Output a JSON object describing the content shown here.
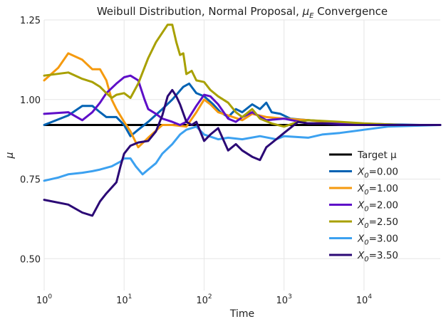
{
  "chart_data": {
    "type": "line",
    "title": "Weibull Distribution, Normal Proposal, μ_E Convergence",
    "title_main": "Weibull Distribution, Normal Proposal, ",
    "title_sym": "μ",
    "title_sub": "E",
    "title_end": " Convergence",
    "xlabel": "Time",
    "ylabel": "μ",
    "x_scale": "log",
    "xlim": [
      1,
      90000
    ],
    "ylim": [
      0.4,
      1.25
    ],
    "y_ticks": [
      {
        "value": 0.5,
        "label": "0.50"
      },
      {
        "value": 0.75,
        "label": "0.75"
      },
      {
        "value": 1.0,
        "label": "1.00"
      },
      {
        "value": 1.25,
        "label": "1.25"
      }
    ],
    "x_ticks": [
      {
        "value": 1,
        "base": "10",
        "exp": "0"
      },
      {
        "value": 10,
        "base": "10",
        "exp": "1"
      },
      {
        "value": 100,
        "base": "10",
        "exp": "2"
      },
      {
        "value": 1000,
        "base": "10",
        "exp": "3"
      },
      {
        "value": 10000,
        "base": "10",
        "exp": "4"
      }
    ],
    "grid": true,
    "legend_position": "center-right",
    "target": {
      "name": "Target μ",
      "value": 0.92,
      "color": "#000000"
    },
    "series": [
      {
        "name": "X_0=0.00",
        "legend_pre": "X",
        "legend_sub": "0",
        "legend_post": "=0.00",
        "color": "#0062b3",
        "points": [
          [
            1,
            0.92
          ],
          [
            2,
            0.95
          ],
          [
            3,
            0.98
          ],
          [
            4,
            0.98
          ],
          [
            5,
            0.96
          ],
          [
            6,
            0.945
          ],
          [
            8,
            0.945
          ],
          [
            10,
            0.92
          ],
          [
            12,
            0.885
          ],
          [
            15,
            0.905
          ],
          [
            20,
            0.93
          ],
          [
            30,
            0.97
          ],
          [
            40,
            1.0
          ],
          [
            55,
            1.04
          ],
          [
            65,
            1.05
          ],
          [
            80,
            1.02
          ],
          [
            100,
            1.01
          ],
          [
            130,
            0.985
          ],
          [
            160,
            0.96
          ],
          [
            200,
            0.945
          ],
          [
            250,
            0.97
          ],
          [
            300,
            0.96
          ],
          [
            400,
            0.985
          ],
          [
            500,
            0.97
          ],
          [
            600,
            0.99
          ],
          [
            700,
            0.96
          ],
          [
            900,
            0.955
          ],
          [
            1200,
            0.94
          ],
          [
            2000,
            0.935
          ],
          [
            4000,
            0.93
          ],
          [
            8000,
            0.925
          ],
          [
            20000,
            0.922
          ],
          [
            50000,
            0.92
          ],
          [
            90000,
            0.92
          ]
        ]
      },
      {
        "name": "X_0=1.00",
        "legend_pre": "X",
        "legend_sub": "0",
        "legend_post": "=1.00",
        "color": "#f59a0f",
        "points": [
          [
            1,
            1.06
          ],
          [
            1.5,
            1.1
          ],
          [
            2,
            1.145
          ],
          [
            3,
            1.125
          ],
          [
            4,
            1.095
          ],
          [
            5,
            1.095
          ],
          [
            6,
            1.06
          ],
          [
            7,
            1.0
          ],
          [
            8,
            0.97
          ],
          [
            10,
            0.93
          ],
          [
            12,
            0.9
          ],
          [
            15,
            0.85
          ],
          [
            20,
            0.88
          ],
          [
            30,
            0.92
          ],
          [
            40,
            0.92
          ],
          [
            60,
            0.915
          ],
          [
            80,
            0.96
          ],
          [
            100,
            1.0
          ],
          [
            120,
            0.985
          ],
          [
            150,
            0.96
          ],
          [
            200,
            0.95
          ],
          [
            300,
            0.935
          ],
          [
            400,
            0.955
          ],
          [
            600,
            0.945
          ],
          [
            1000,
            0.94
          ],
          [
            2000,
            0.935
          ],
          [
            5000,
            0.925
          ],
          [
            10000,
            0.92
          ],
          [
            30000,
            0.92
          ],
          [
            90000,
            0.92
          ]
        ]
      },
      {
        "name": "X_0=2.00",
        "legend_pre": "X",
        "legend_sub": "0",
        "legend_post": "=2.00",
        "color": "#5e0fc8",
        "points": [
          [
            1,
            0.955
          ],
          [
            2,
            0.96
          ],
          [
            3,
            0.935
          ],
          [
            4,
            0.96
          ],
          [
            5,
            0.99
          ],
          [
            6,
            1.02
          ],
          [
            8,
            1.05
          ],
          [
            10,
            1.07
          ],
          [
            12,
            1.075
          ],
          [
            15,
            1.06
          ],
          [
            18,
            1.0
          ],
          [
            20,
            0.97
          ],
          [
            25,
            0.955
          ],
          [
            30,
            0.94
          ],
          [
            40,
            0.93
          ],
          [
            50,
            0.92
          ],
          [
            60,
            0.93
          ],
          [
            80,
            0.98
          ],
          [
            100,
            1.015
          ],
          [
            120,
            1.01
          ],
          [
            150,
            0.985
          ],
          [
            200,
            0.94
          ],
          [
            250,
            0.93
          ],
          [
            300,
            0.945
          ],
          [
            400,
            0.96
          ],
          [
            600,
            0.935
          ],
          [
            1000,
            0.94
          ],
          [
            2000,
            0.925
          ],
          [
            5000,
            0.925
          ],
          [
            10000,
            0.92
          ],
          [
            90000,
            0.92
          ]
        ]
      },
      {
        "name": "X_0=2.50",
        "legend_pre": "X",
        "legend_sub": "0",
        "legend_post": "=2.50",
        "color": "#a8a000",
        "points": [
          [
            1,
            1.075
          ],
          [
            2,
            1.085
          ],
          [
            3,
            1.065
          ],
          [
            4,
            1.055
          ],
          [
            5,
            1.04
          ],
          [
            6,
            1.02
          ],
          [
            7,
            1.005
          ],
          [
            8,
            1.015
          ],
          [
            10,
            1.02
          ],
          [
            12,
            1.005
          ],
          [
            15,
            1.05
          ],
          [
            20,
            1.13
          ],
          [
            25,
            1.18
          ],
          [
            30,
            1.21
          ],
          [
            35,
            1.235
          ],
          [
            40,
            1.235
          ],
          [
            45,
            1.18
          ],
          [
            50,
            1.14
          ],
          [
            55,
            1.145
          ],
          [
            60,
            1.08
          ],
          [
            70,
            1.09
          ],
          [
            80,
            1.06
          ],
          [
            100,
            1.055
          ],
          [
            120,
            1.03
          ],
          [
            150,
            1.01
          ],
          [
            200,
            0.99
          ],
          [
            250,
            0.96
          ],
          [
            300,
            0.945
          ],
          [
            400,
            0.97
          ],
          [
            500,
            0.94
          ],
          [
            700,
            0.925
          ],
          [
            1000,
            0.915
          ],
          [
            1500,
            0.93
          ],
          [
            2000,
            0.935
          ],
          [
            5000,
            0.93
          ],
          [
            10000,
            0.925
          ],
          [
            30000,
            0.92
          ],
          [
            90000,
            0.92
          ]
        ]
      },
      {
        "name": "X_0=3.00",
        "legend_pre": "X",
        "legend_sub": "0",
        "legend_post": "=3.00",
        "color": "#3ca1f0",
        "points": [
          [
            1,
            0.745
          ],
          [
            1.5,
            0.755
          ],
          [
            2,
            0.765
          ],
          [
            3,
            0.77
          ],
          [
            4,
            0.775
          ],
          [
            5,
            0.78
          ],
          [
            7,
            0.79
          ],
          [
            9,
            0.805
          ],
          [
            10,
            0.815
          ],
          [
            12,
            0.815
          ],
          [
            14,
            0.79
          ],
          [
            17,
            0.765
          ],
          [
            20,
            0.78
          ],
          [
            25,
            0.8
          ],
          [
            30,
            0.83
          ],
          [
            40,
            0.86
          ],
          [
            50,
            0.89
          ],
          [
            60,
            0.905
          ],
          [
            80,
            0.915
          ],
          [
            100,
            0.89
          ],
          [
            150,
            0.875
          ],
          [
            200,
            0.88
          ],
          [
            300,
            0.875
          ],
          [
            500,
            0.885
          ],
          [
            800,
            0.875
          ],
          [
            1000,
            0.885
          ],
          [
            2000,
            0.88
          ],
          [
            3000,
            0.89
          ],
          [
            5000,
            0.895
          ],
          [
            10000,
            0.905
          ],
          [
            20000,
            0.915
          ],
          [
            50000,
            0.918
          ],
          [
            90000,
            0.92
          ]
        ]
      },
      {
        "name": "X_0=3.50",
        "legend_pre": "X",
        "legend_sub": "0",
        "legend_post": "=3.50",
        "color": "#2b0875",
        "points": [
          [
            1,
            0.685
          ],
          [
            2,
            0.67
          ],
          [
            3,
            0.645
          ],
          [
            4,
            0.635
          ],
          [
            5,
            0.68
          ],
          [
            6,
            0.705
          ],
          [
            8,
            0.74
          ],
          [
            9,
            0.79
          ],
          [
            10,
            0.83
          ],
          [
            12,
            0.855
          ],
          [
            15,
            0.865
          ],
          [
            20,
            0.87
          ],
          [
            25,
            0.9
          ],
          [
            30,
            0.95
          ],
          [
            35,
            1.01
          ],
          [
            40,
            1.03
          ],
          [
            45,
            1.01
          ],
          [
            50,
            0.985
          ],
          [
            60,
            0.93
          ],
          [
            70,
            0.92
          ],
          [
            80,
            0.93
          ],
          [
            100,
            0.87
          ],
          [
            120,
            0.89
          ],
          [
            150,
            0.91
          ],
          [
            200,
            0.84
          ],
          [
            250,
            0.86
          ],
          [
            300,
            0.84
          ],
          [
            400,
            0.82
          ],
          [
            500,
            0.81
          ],
          [
            600,
            0.85
          ],
          [
            800,
            0.875
          ],
          [
            1000,
            0.895
          ],
          [
            1500,
            0.93
          ],
          [
            2000,
            0.925
          ],
          [
            3000,
            0.925
          ],
          [
            5000,
            0.92
          ],
          [
            10000,
            0.92
          ],
          [
            90000,
            0.92
          ]
        ]
      }
    ]
  }
}
